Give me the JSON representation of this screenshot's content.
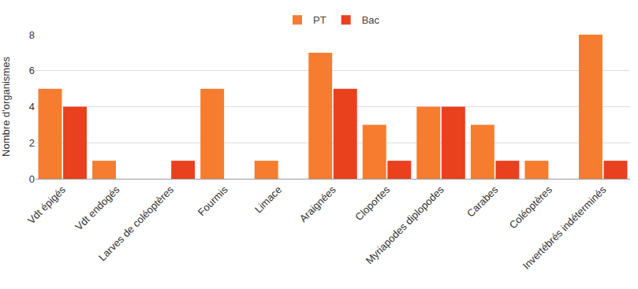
{
  "chart_data": {
    "type": "bar",
    "y_label": "Nombre d'organismes",
    "categories": [
      "Vdt épigés",
      "Vdt endogés",
      "Larves de coléoptères",
      "Fourmis",
      "Limace",
      "Araignées",
      "Cloportes",
      "Myriapodes diplopodes",
      "Carabes",
      "Coléoptères",
      "Invertébrés indéterminés"
    ],
    "series": [
      {
        "name": "PT",
        "color": "#f67d2f",
        "values": [
          5,
          1,
          0,
          5,
          1,
          7,
          3,
          4,
          3,
          1,
          8
        ]
      },
      {
        "name": "Bac",
        "color": "#e9401e",
        "values": [
          4,
          0,
          1,
          0,
          0,
          5,
          1,
          4,
          1,
          0,
          1
        ]
      }
    ],
    "ylim": [
      0,
      8
    ],
    "yticks": [
      0,
      2,
      4,
      6,
      8
    ],
    "grid": true,
    "legend": "top"
  }
}
